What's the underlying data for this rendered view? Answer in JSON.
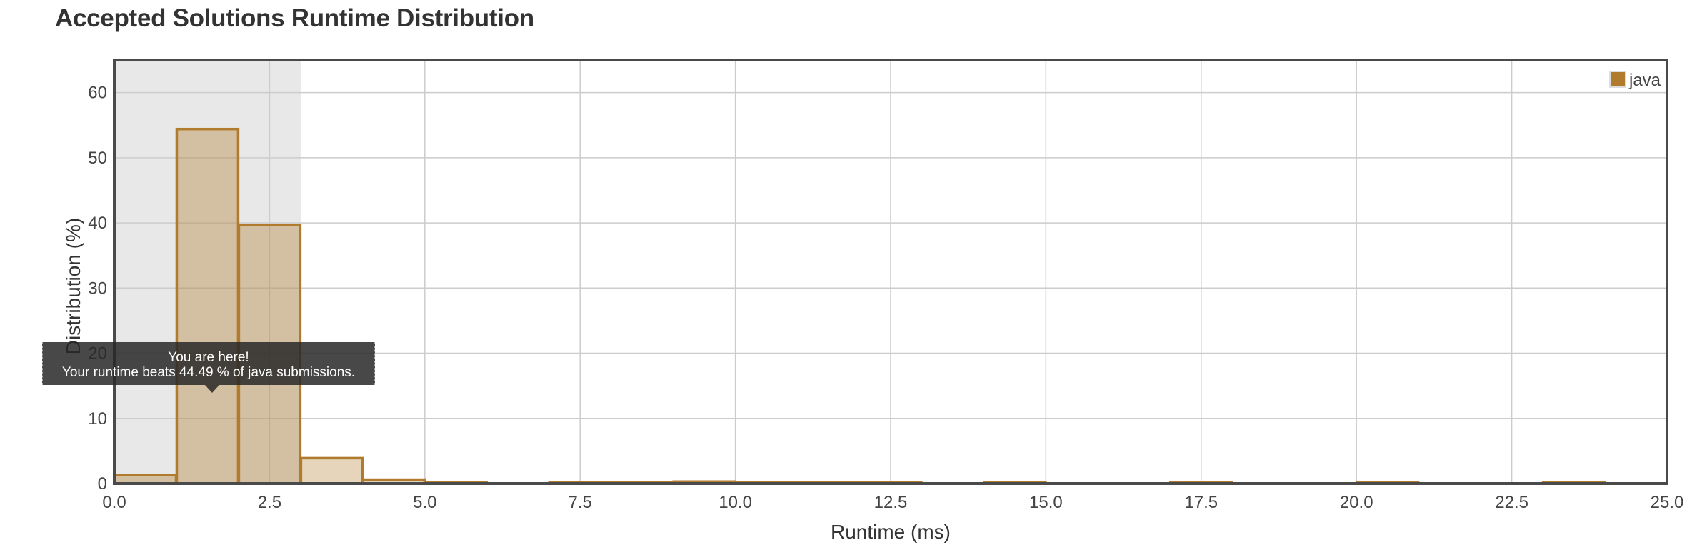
{
  "page": {
    "title": "Accepted Solutions Runtime Distribution"
  },
  "chart_data": {
    "type": "bar",
    "title": "Accepted Solutions Runtime Distribution",
    "xlabel": "Runtime (ms)",
    "ylabel": "Distribution (%)",
    "xlim": [
      0,
      25
    ],
    "ylim": [
      0,
      65
    ],
    "x_ticks": [
      "0.0",
      "2.5",
      "5.0",
      "7.5",
      "10.0",
      "12.5",
      "15.0",
      "17.5",
      "20.0",
      "22.5",
      "25.0"
    ],
    "y_ticks": [
      "0",
      "10",
      "20",
      "30",
      "40",
      "50",
      "60"
    ],
    "grid": true,
    "legend": {
      "position": "top-right",
      "entries": [
        "java"
      ]
    },
    "highlight_range": [
      0,
      3
    ],
    "bin_width": 1,
    "series": [
      {
        "name": "java",
        "color": "#b07b2c",
        "bins": [
          {
            "x0": 0,
            "value": 1.3
          },
          {
            "x0": 1,
            "value": 54.4
          },
          {
            "x0": 2,
            "value": 39.7
          },
          {
            "x0": 3,
            "value": 3.9
          },
          {
            "x0": 4,
            "value": 0.6
          },
          {
            "x0": 5,
            "value": 0.2
          },
          {
            "x0": 7,
            "value": 0.2
          },
          {
            "x0": 8,
            "value": 0.2
          },
          {
            "x0": 9,
            "value": 0.3
          },
          {
            "x0": 10,
            "value": 0.2
          },
          {
            "x0": 11,
            "value": 0.2
          },
          {
            "x0": 12,
            "value": 0.2
          },
          {
            "x0": 14,
            "value": 0.2
          },
          {
            "x0": 17,
            "value": 0.2
          },
          {
            "x0": 20,
            "value": 0.2
          },
          {
            "x0": 23,
            "value": 0.2
          }
        ]
      }
    ],
    "tooltip": {
      "line1": "You are here!",
      "line2": "Your runtime beats 44.49 % of java submissions."
    }
  }
}
